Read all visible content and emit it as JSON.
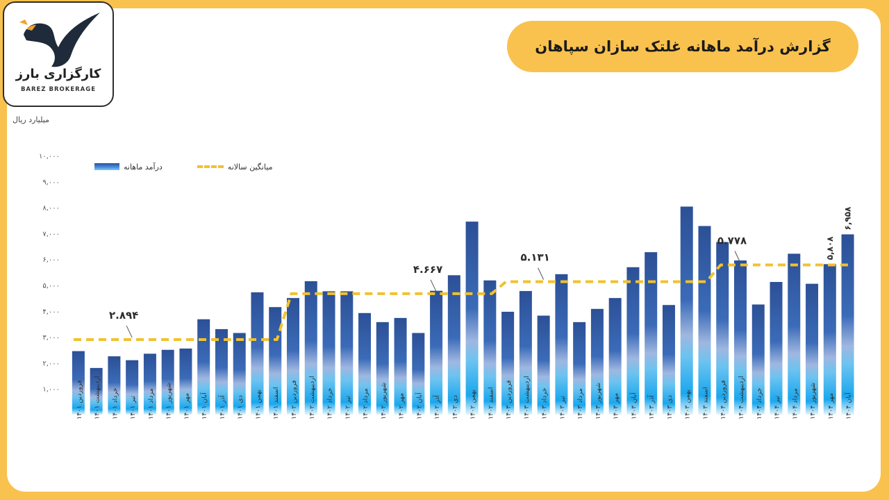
{
  "title": "گزارش درآمد ماهانه غلتک سازان سپاهان",
  "logo": {
    "text_fa": "کارگزاری بارز",
    "text_en": "BAREZ BROKERAGE"
  },
  "colors": {
    "background": "#f9c14e",
    "bar_top": "#2c5096",
    "bar_bottom": "#5bc8f5",
    "avg_line": "#f2c12e"
  },
  "chart_data": {
    "type": "bar",
    "unit_label": "میلیارد ریال",
    "ylim": [
      0,
      10000
    ],
    "yticks": [
      "۱,۰۰۰",
      "۲,۰۰۰",
      "۳,۰۰۰",
      "۴,۰۰۰",
      "۵,۰۰۰",
      "۶,۰۰۰",
      "۷,۰۰۰",
      "۸,۰۰۰",
      "۹,۰۰۰",
      "۱۰,۰۰۰"
    ],
    "ytick_values": [
      1000,
      2000,
      3000,
      4000,
      5000,
      6000,
      7000,
      8000,
      9000,
      10000
    ],
    "legend": {
      "bars": "درآمد ماهانه",
      "line": "میانگین سالانه"
    },
    "categories": [
      "فروردین ۱۴۰۱",
      "اردیبهشت ۱۴۰۱",
      "خرداد ۱۴۰۱",
      "تیر ۱۴۰۱",
      "مرداد ۱۴۰۱",
      "شهریور ۱۴۰۱",
      "مهر ۱۴۰۱",
      "آبان ۱۴۰۱",
      "آذر ۱۴۰۱",
      "دی ۱۴۰۱",
      "بهمن ۱۴۰۱",
      "اسفند ۱۴۰۱",
      "فروردین ۱۴۰۲",
      "اردیبهشت ۱۴۰۲",
      "خرداد ۱۴۰۲",
      "تیر ۱۴۰۲",
      "مرداد ۱۴۰۲",
      "شهریور ۱۴۰۲",
      "مهر ۱۴۰۲",
      "آبان ۱۴۰۲",
      "آذر ۱۴۰۲",
      "دی ۱۴۰۲",
      "بهمن ۱۴۰۲",
      "اسفند ۱۴۰۲",
      "فروردین ۱۴۰۳",
      "اردیبهشت ۱۴۰۳",
      "خرداد ۱۴۰۳",
      "تیر ۱۴۰۳",
      "مرداد ۱۴۰۳",
      "شهریور ۱۴۰۳",
      "مهر ۱۴۰۳",
      "آبان ۱۴۰۳",
      "آذر ۱۴۰۳",
      "دی ۱۴۰۳",
      "بهمن ۱۴۰۳",
      "اسفند ۱۴۰۳",
      "فروردین ۱۴۰۴",
      "اردیبهشت ۱۴۰۴",
      "خرداد ۱۴۰۴",
      "تیر ۱۴۰۴",
      "مرداد ۱۴۰۴",
      "شهریور ۱۴۰۴",
      "مهر ۱۴۰۴",
      "آبان ۱۴۰۴"
    ],
    "values": [
      2450,
      1800,
      2250,
      2100,
      2350,
      2500,
      2550,
      3680,
      3300,
      3150,
      4720,
      4150,
      4500,
      5150,
      4760,
      4760,
      3920,
      3570,
      3730,
      3150,
      4780,
      5380,
      7450,
      5180,
      3970,
      4770,
      3820,
      5420,
      3570,
      4080,
      4500,
      5690,
      6270,
      4230,
      8030,
      7280,
      6660,
      5950,
      4250,
      5120,
      6210,
      5050,
      5808,
      6958
    ],
    "series": [
      {
        "name": "میانگین سالانه",
        "type": "step-line",
        "segments": [
          {
            "from": 0,
            "to": 11,
            "value": 2894,
            "label": "۲.۸۹۴"
          },
          {
            "from": 12,
            "to": 23,
            "value": 4667,
            "label": "۴.۶۶۷"
          },
          {
            "from": 24,
            "to": 35,
            "value": 5131,
            "label": "۵.۱۳۱"
          },
          {
            "from": 36,
            "to": 43,
            "value": 5778,
            "label": "۵.۷۷۸"
          }
        ]
      }
    ],
    "data_labels": [
      {
        "index": 42,
        "text": "۵,۸۰۸"
      },
      {
        "index": 43,
        "text": "۶,۹۵۸"
      }
    ]
  }
}
